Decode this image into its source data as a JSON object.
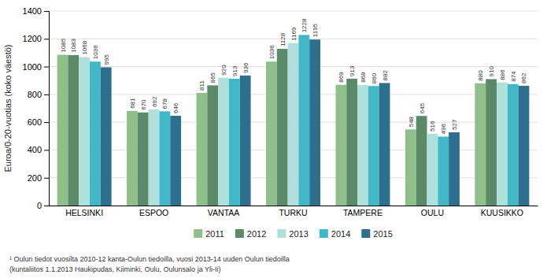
{
  "chart_data": {
    "type": "bar",
    "categories": [
      "HELSINKI",
      "ESPOO",
      "VANTAA",
      "TURKU",
      "TAMPERE",
      "OULU",
      "KUUSIKKO"
    ],
    "series": [
      {
        "name": "2011",
        "color": "#8fc08a",
        "values": [
          1085,
          681,
          811,
          1036,
          869,
          548,
          880
        ]
      },
      {
        "name": "2012",
        "color": "#5a8a68",
        "values": [
          1083,
          670,
          865,
          1128,
          913,
          645,
          910
        ]
      },
      {
        "name": "2013",
        "color": "#b0e0dc",
        "values": [
          1068,
          692,
          920,
          1169,
          868,
          516,
          886
        ]
      },
      {
        "name": "2014",
        "color": "#40b8c8",
        "values": [
          1036,
          678,
          913,
          1228,
          860,
          496,
          874
        ]
      },
      {
        "name": "2015",
        "color": "#2e6f8e",
        "values": [
          995,
          646,
          936,
          1195,
          882,
          527,
          862
        ]
      }
    ],
    "ylabel": "Euroa/0-20-vuotias (koko väestö)",
    "ylim": [
      0,
      1400
    ],
    "yticks": [
      0,
      200,
      400,
      600,
      800,
      1000,
      1200,
      1400
    ],
    "grid": true,
    "data_labels": true,
    "legend": "bottom",
    "annotations": [
      "¹ Oulun tiedot vuosilta 2010-12 kanta-Oulun tiedoilla, vuosi 2013-14 uuden Oulun tiedoilla",
      "(kuntaliitos 1.1.2013 Haukipudas, Kiiminki, Oulu, Oulunsalo ja Yli-Ii)"
    ]
  }
}
